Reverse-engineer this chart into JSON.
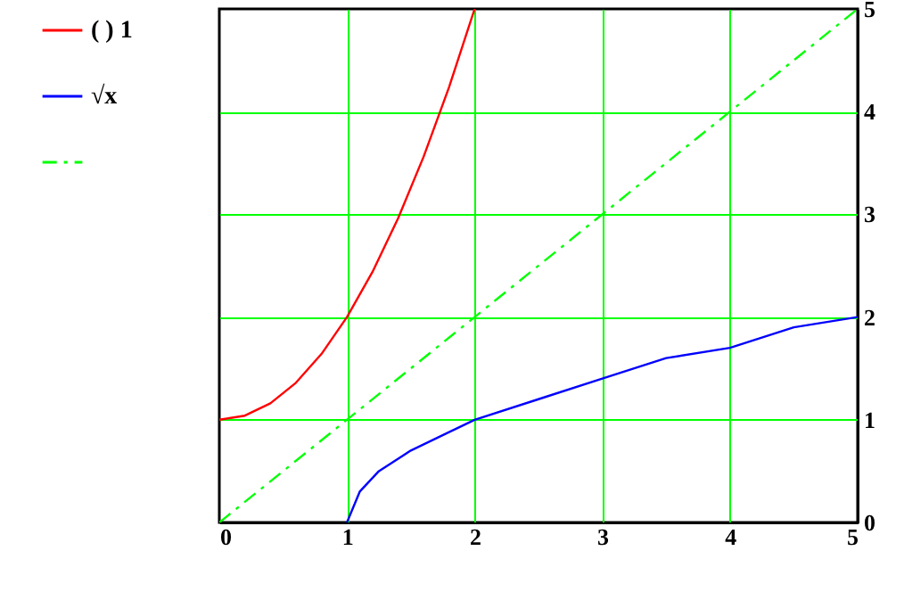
{
  "chart_data": {
    "type": "line",
    "xlim": [
      0,
      5
    ],
    "ylim": [
      0,
      5
    ],
    "xticks": [
      0,
      1,
      2,
      3,
      4,
      5
    ],
    "yticks": [
      0,
      1,
      2,
      3,
      4,
      5
    ],
    "grid": true,
    "legend": "left",
    "series": [
      {
        "name": "( ) 1",
        "color": "#ff0000",
        "line_style": "solid",
        "x": [
          0,
          0.2,
          0.4,
          0.6,
          0.8,
          1,
          1.2,
          1.4,
          1.6,
          1.8,
          2
        ],
        "values": [
          1,
          1.04,
          1.16,
          1.36,
          1.64,
          2,
          2.44,
          2.96,
          3.56,
          4.24,
          5
        ]
      },
      {
        "name": "√x",
        "color": "#0000ff",
        "line_style": "solid",
        "x": [
          1,
          1.1,
          1.25,
          1.5,
          2,
          2.5,
          3,
          3.5,
          4,
          4.5,
          5
        ],
        "values": [
          0,
          0.3,
          0.5,
          0.7,
          1,
          1.2,
          1.4,
          1.6,
          1.7,
          1.9,
          2
        ]
      },
      {
        "color": "#00ff00",
        "line_style": "dashed",
        "x": [
          0,
          5
        ],
        "values": [
          0,
          5
        ]
      }
    ]
  }
}
